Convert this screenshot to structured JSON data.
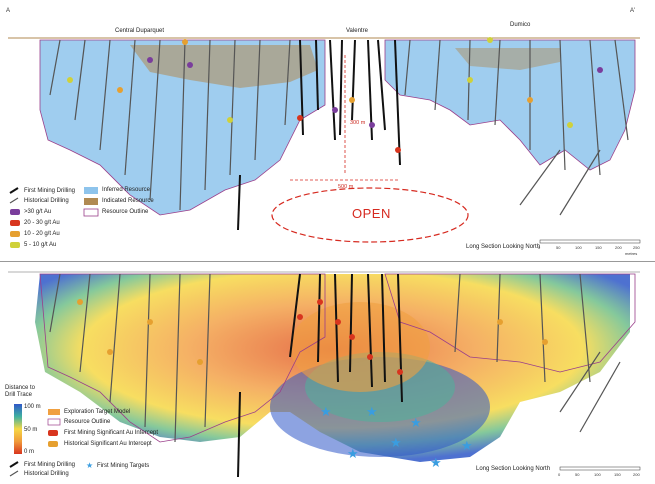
{
  "top": {
    "corner_left": "A",
    "corner_right": "A'",
    "deposit_labels": [
      "Central Duparquet",
      "Valentre",
      "Dumico"
    ],
    "open_label": "OPEN",
    "distance_h": "500 m",
    "distance_v": "300 m",
    "long_section": "Long Section Looking North",
    "scale_ticks": [
      "0",
      "50",
      "100",
      "150",
      "200",
      "250"
    ],
    "scale_note": "metres",
    "legend": {
      "first_mining_drilling": "First Mining Drilling",
      "historical_drilling": "Historical Drilling",
      "grade_classes": [
        ">30 g/t Au",
        "20 - 30 g/t Au",
        "10 - 20 g/t Au",
        "5 - 10 g/t Au"
      ],
      "inferred": "Inferred Resource",
      "indicated": "Indicated Resource",
      "outline": "Resource Outline"
    },
    "colors": {
      "inferred": "#8ec4ec",
      "indicated": "#b08a52",
      "outline": "#9a3e8a",
      "distance_marker": "#d62a20"
    }
  },
  "bottom": {
    "legend": {
      "distance_title": "Distance to Drill Trace",
      "scale_labels": [
        "100 m",
        "50 m",
        "0 m"
      ],
      "exploration_target": "Exploration Target Model",
      "outline": "Resource Outline",
      "first_mining_intercept": "First Mining Significant Au Intercept",
      "historical_intercept": "Historical Significant Au Intercept",
      "first_mining_drilling": "First Mining Drilling",
      "historical_drilling": "Historical Drilling",
      "targets": "First Mining Targets"
    },
    "long_section": "Long Section Looking North",
    "scale_ticks": [
      "0",
      "50",
      "100",
      "150",
      "200"
    ],
    "colors": {
      "near": "#d8351e",
      "mid": "#f6d845",
      "far": "#2f58c8",
      "target_star": "#3a9de0"
    }
  }
}
